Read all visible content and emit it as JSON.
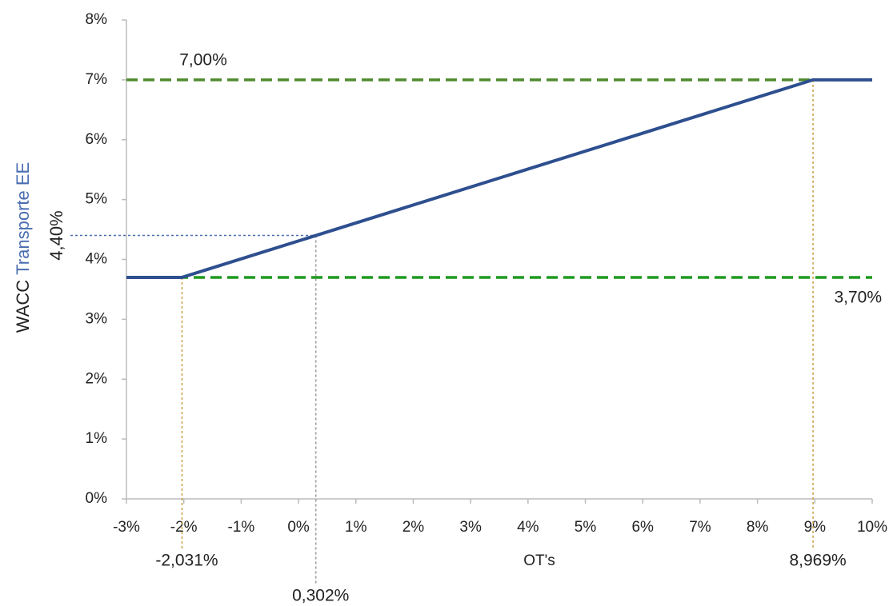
{
  "chart_data": {
    "type": "line",
    "x_label": "OT's",
    "y_label_parts": [
      {
        "text": "WACC",
        "color": "#222222"
      },
      {
        "text": "Transporte EE",
        "color": "#4a6db0"
      }
    ],
    "x": [
      -3,
      -2.031,
      8.969,
      10
    ],
    "series": [
      {
        "color": "#2e4f8f",
        "values": [
          3.7,
          3.7,
          7,
          7
        ]
      }
    ],
    "xlim": [
      -3,
      10
    ],
    "ylim": [
      0,
      8
    ],
    "xticks": [
      {
        "value": -3,
        "label": "-3%"
      },
      {
        "value": -2,
        "label": "-2%"
      },
      {
        "value": -1,
        "label": "-1%"
      },
      {
        "value": 0,
        "label": "0%"
      },
      {
        "value": 1,
        "label": "1%"
      },
      {
        "value": 2,
        "label": "2%"
      },
      {
        "value": 3,
        "label": "3%"
      },
      {
        "value": 4,
        "label": "4%"
      },
      {
        "value": 5,
        "label": "5%"
      },
      {
        "value": 6,
        "label": "6%"
      },
      {
        "value": 7,
        "label": "7%"
      },
      {
        "value": 8,
        "label": "8%"
      },
      {
        "value": 9,
        "label": "9%"
      },
      {
        "value": 10,
        "label": "10%"
      }
    ],
    "yticks": [
      {
        "value": 0,
        "label": "0%"
      },
      {
        "value": 1,
        "label": "1%"
      },
      {
        "value": 2,
        "label": "2%"
      },
      {
        "value": 3,
        "label": "3%"
      },
      {
        "value": 4,
        "label": "4%"
      },
      {
        "value": 5,
        "label": "5%"
      },
      {
        "value": 6,
        "label": "6%"
      },
      {
        "value": 7,
        "label": "7%"
      },
      {
        "value": 8,
        "label": "8%"
      }
    ],
    "reference_lines": [
      {
        "value": 7,
        "label": "7,00%",
        "color": "#4e8a2e"
      },
      {
        "value": 3.7,
        "label": "3,70%",
        "color": "#1f9a1f"
      }
    ],
    "markers": [
      {
        "x": -2.031,
        "y": 3.7,
        "label": "-2,031%",
        "color": "#c9a040"
      },
      {
        "x": 0.302,
        "y": 4.4,
        "label": "0,302%",
        "y_label": "4,40%",
        "color": "#999999",
        "y_color": "#4a6db0"
      },
      {
        "x": 8.969,
        "y": 7,
        "label": "8,969%",
        "color": "#c9a040"
      }
    ]
  }
}
